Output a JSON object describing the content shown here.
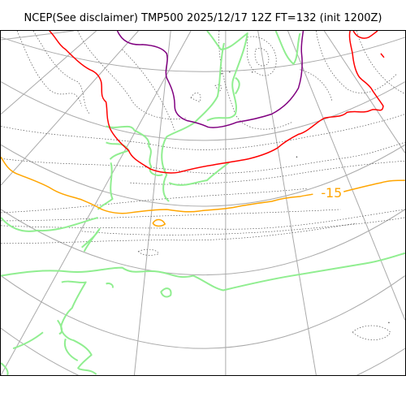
{
  "title": "NCEP(See disclaimer) TMP500 2025/12/17 12Z FT=132 (init 1200Z)",
  "colors": {
    "graticule": "#aaaaaa",
    "coastline": "#90ee90",
    "contour_minor": "#555555",
    "isotherm_m15": "#ffa500",
    "isotherm_m30": "#ff0000",
    "isotherm_m40": "#800080"
  },
  "contour_labels": {
    "m15": "-15"
  }
}
